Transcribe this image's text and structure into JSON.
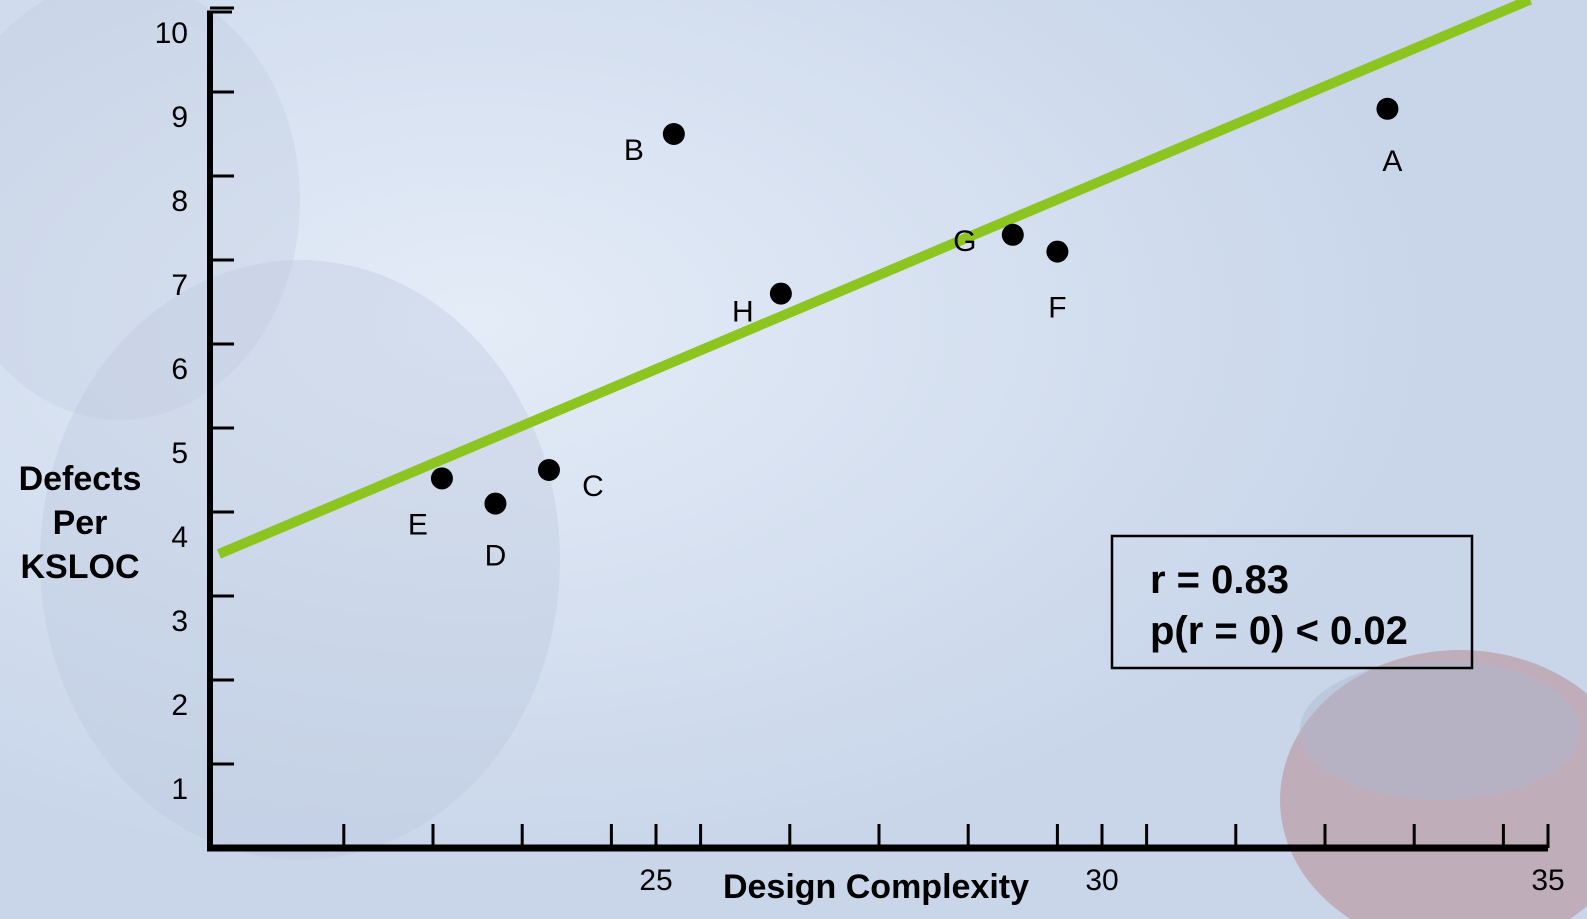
{
  "chart_data": {
    "type": "scatter",
    "xlabel": "Design Complexity",
    "ylabel_lines": [
      "Defects",
      "Per",
      "KSLOC"
    ],
    "x_ticks": [
      {
        "value": 25,
        "label": "25"
      },
      {
        "value": 30,
        "label": "30"
      },
      {
        "value": 35,
        "label": "35"
      }
    ],
    "x_minor_ticks": [
      21.5,
      22.5,
      23.5,
      24.5,
      25.5,
      26.5,
      27.5,
      28.5,
      29.5,
      30.5,
      31.5,
      32.5,
      33.5,
      34.5
    ],
    "y_ticks": [
      {
        "value": 1,
        "label": "1"
      },
      {
        "value": 2,
        "label": "2"
      },
      {
        "value": 3,
        "label": "3"
      },
      {
        "value": 4,
        "label": "4"
      },
      {
        "value": 5,
        "label": "5"
      },
      {
        "value": 6,
        "label": "6"
      },
      {
        "value": 7,
        "label": "7"
      },
      {
        "value": 8,
        "label": "8"
      },
      {
        "value": 9,
        "label": "9"
      },
      {
        "value": 10,
        "label": "10"
      }
    ],
    "xlim": [
      20.0,
      35.0
    ],
    "ylim": [
      0,
      10.5
    ],
    "points": [
      {
        "label": "A",
        "x": 33.2,
        "y": 8.8
      },
      {
        "label": "B",
        "x": 25.2,
        "y": 8.5
      },
      {
        "label": "C",
        "x": 23.8,
        "y": 4.5
      },
      {
        "label": "D",
        "x": 23.2,
        "y": 4.1
      },
      {
        "label": "E",
        "x": 22.6,
        "y": 4.4
      },
      {
        "label": "F",
        "x": 29.5,
        "y": 7.1
      },
      {
        "label": "G",
        "x": 29.0,
        "y": 7.3
      },
      {
        "label": "H",
        "x": 26.4,
        "y": 6.6
      }
    ],
    "trend_line": {
      "x1": 20.1,
      "y1": 3.5,
      "x2": 34.8,
      "y2": 10.1,
      "color": "#8cc520"
    },
    "annotations": [
      "r = 0.83",
      "p(r = 0) < 0.02"
    ],
    "grid": false
  }
}
